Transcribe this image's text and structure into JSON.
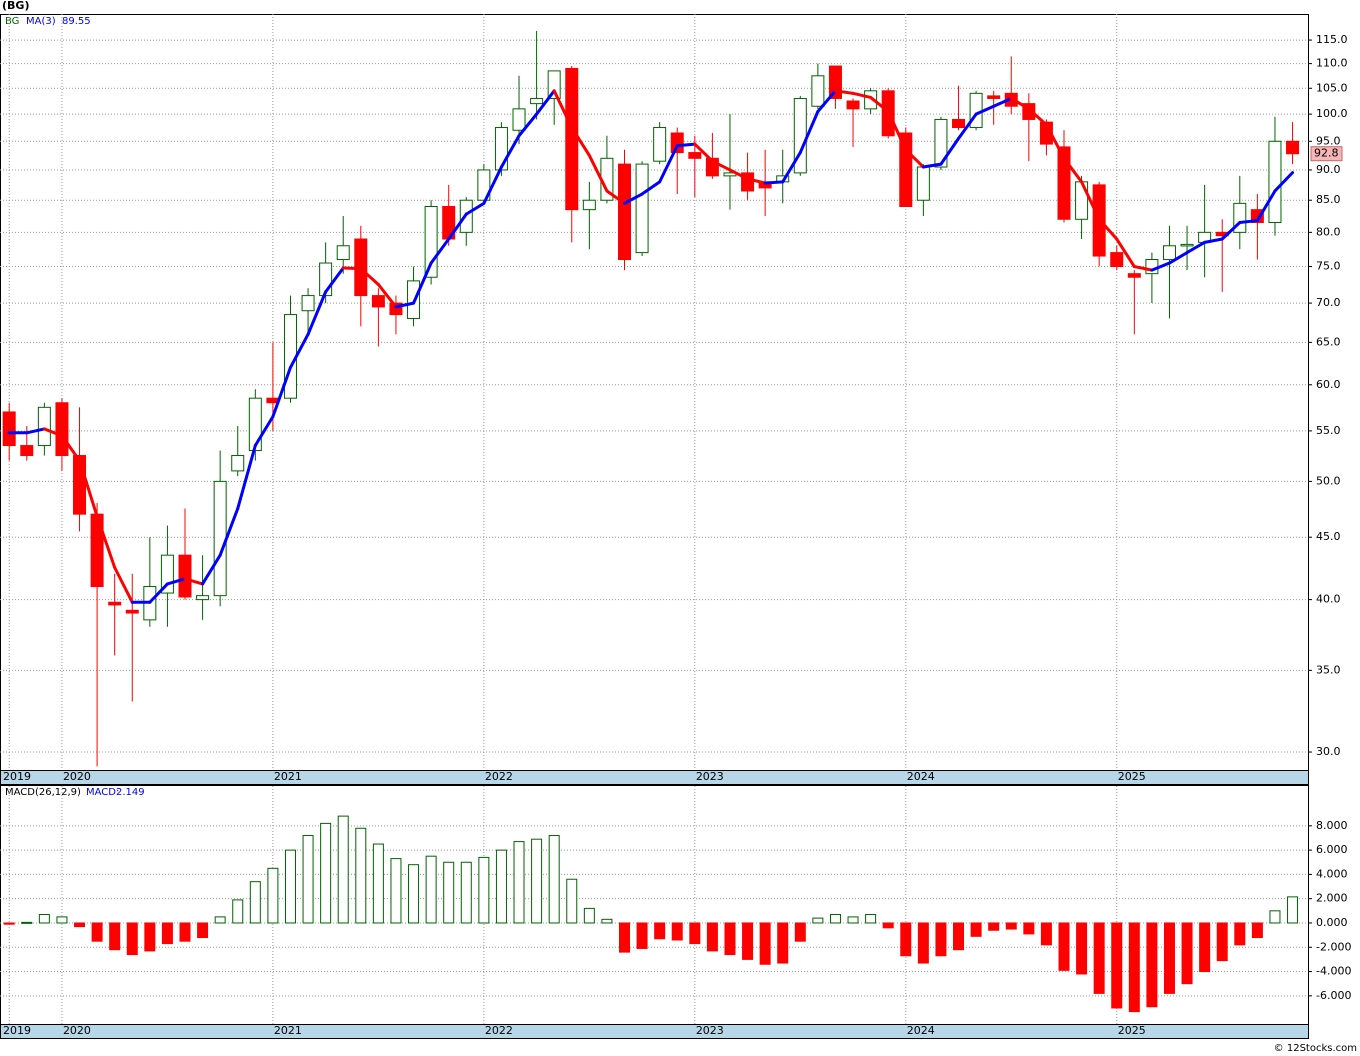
{
  "chart_data": [
    {
      "type": "candlestick",
      "title": "(BG)",
      "symbol": "BG",
      "categories": [
        "2019",
        null,
        null,
        "2020",
        null,
        null,
        null,
        null,
        null,
        null,
        null,
        null,
        null,
        null,
        null,
        "2021",
        null,
        null,
        null,
        null,
        null,
        null,
        null,
        null,
        null,
        null,
        null,
        "2022",
        null,
        null,
        null,
        null,
        null,
        null,
        null,
        null,
        null,
        null,
        null,
        "2023",
        null,
        null,
        null,
        null,
        null,
        null,
        null,
        null,
        null,
        null,
        null,
        "2024",
        null,
        null,
        null,
        null,
        null,
        null,
        null,
        null,
        null,
        null,
        null,
        "2025",
        null,
        null,
        null,
        null,
        null,
        null,
        null,
        null,
        null,
        null
      ],
      "open": [
        57,
        53.5,
        53.5,
        58,
        52.5,
        47,
        39.8,
        39.2,
        38.5,
        40.5,
        43.5,
        40,
        40.3,
        51,
        53,
        58.5,
        58.5,
        69,
        71,
        76,
        79,
        71,
        70,
        68,
        73.5,
        84,
        80,
        85,
        90,
        97,
        102,
        103,
        109,
        83.5,
        85,
        91,
        77,
        91.5,
        96.5,
        93,
        92,
        89,
        89.5,
        88,
        88,
        89.5,
        101.5,
        109.5,
        102.5,
        101,
        104.5,
        96.5,
        85,
        90.5,
        99,
        97.5,
        103.5,
        104,
        102,
        98.5,
        94,
        82,
        87.5,
        77,
        74,
        74,
        76,
        78,
        78.5,
        80,
        80,
        83.5,
        81.5,
        95
      ],
      "high": [
        58,
        55.5,
        58,
        58.5,
        57.5,
        48,
        42,
        42,
        45,
        46,
        47.5,
        43.5,
        53,
        55.5,
        59.5,
        65,
        71,
        72,
        78.5,
        82.5,
        81,
        72,
        71,
        75,
        85,
        87.5,
        85.5,
        91,
        98.5,
        107.5,
        117,
        108.5,
        109.5,
        88,
        96,
        93.5,
        91.5,
        98.5,
        97.5,
        96,
        96.5,
        100,
        93,
        93.5,
        93.5,
        103.5,
        110,
        109.5,
        103,
        105,
        105,
        97.5,
        91,
        99.5,
        105.5,
        104.5,
        104.5,
        111.5,
        104,
        99,
        97,
        89,
        88,
        78,
        74.5,
        77,
        81,
        81,
        87.5,
        82,
        89,
        86,
        99.5,
        98.5
      ],
      "low": [
        52,
        52,
        52.5,
        51,
        45.5,
        29.2,
        36,
        33,
        38,
        38,
        40,
        38.5,
        39.5,
        50.5,
        52,
        55,
        58,
        66,
        70,
        74,
        67,
        64.5,
        66,
        67,
        72.5,
        78,
        78,
        84.5,
        89,
        94.5,
        99,
        98,
        78.5,
        77.5,
        84.5,
        74.5,
        76.5,
        91,
        86,
        85.5,
        88.5,
        83.5,
        85,
        82.5,
        84.5,
        89,
        101,
        101,
        94,
        100,
        95.5,
        84,
        82.5,
        90,
        97,
        97,
        98,
        100,
        91.5,
        92.5,
        81.5,
        79,
        75,
        74.5,
        66,
        70,
        68,
        74.5,
        73.5,
        71.5,
        77.5,
        76,
        79.5,
        91
      ],
      "close": [
        53.5,
        52.5,
        57.5,
        52.5,
        47,
        41,
        39.6,
        39,
        41,
        43.5,
        40.2,
        40.3,
        50,
        52.5,
        58.5,
        58,
        68.5,
        71,
        75.5,
        78,
        71,
        69.5,
        68.5,
        73,
        84,
        79,
        85,
        90,
        97.5,
        101,
        103,
        108.5,
        83.5,
        85,
        92,
        76,
        91,
        97.5,
        93,
        92,
        89,
        89.5,
        86.5,
        87,
        89,
        103,
        107.5,
        103,
        101,
        104.5,
        96,
        84,
        90.5,
        99,
        97.5,
        104,
        103,
        101.5,
        99,
        94.5,
        82,
        88,
        76.5,
        75,
        73.5,
        76,
        78,
        78.2,
        80,
        79.5,
        84.5,
        81.5,
        95,
        92.8
      ],
      "up_color": "#006400",
      "down_color": "#ff0000",
      "last_color": "#f4b6b6",
      "ma": {
        "name": "MA(3)",
        "up_color": "#0000ff",
        "down_color": "#ff0000",
        "values": [
          54.8,
          54.8,
          55.2,
          54.5,
          52,
          46.8,
          42.5,
          39.8,
          39.8,
          41.2,
          41.6,
          41.2,
          43.5,
          47.5,
          53.5,
          56.5,
          62,
          66,
          71.5,
          74.8,
          74.7,
          72.5,
          69.5,
          70,
          75.5,
          79,
          82.8,
          84.5,
          90.5,
          96,
          100,
          104.5,
          97.5,
          92.5,
          86.5,
          84.5,
          86,
          88,
          94.2,
          94.5,
          91.5,
          90,
          88.5,
          87.8,
          88,
          93,
          100.5,
          104.5,
          104,
          103.2,
          100.5,
          93.5,
          90.5,
          91,
          95.5,
          100,
          101.5,
          103,
          101,
          98,
          92,
          88,
          82,
          79,
          75,
          74.5,
          75.5,
          77,
          78.5,
          79,
          81.5,
          81.8,
          86.5,
          89.55
        ]
      },
      "ylim": [
        29,
        120.8
      ],
      "log_scale": true,
      "grid": true,
      "yticks": [
        {
          "value": 30,
          "label": "30.0"
        },
        {
          "value": 35,
          "label": "35.0"
        },
        {
          "value": 40,
          "label": "40.0"
        },
        {
          "value": 45,
          "label": "45.0"
        },
        {
          "value": 50,
          "label": "50.0"
        },
        {
          "value": 55,
          "label": "55.0"
        },
        {
          "value": 60,
          "label": "60.0"
        },
        {
          "value": 65,
          "label": "65.0"
        },
        {
          "value": 70,
          "label": "70.0"
        },
        {
          "value": 75,
          "label": "75.0"
        },
        {
          "value": 80,
          "label": "80.0"
        },
        {
          "value": 85,
          "label": "85.0"
        },
        {
          "value": 90,
          "label": "90.0"
        },
        {
          "value": 95,
          "label": "95.0"
        },
        {
          "value": 100,
          "label": "100.0"
        },
        {
          "value": 105,
          "label": "105.0"
        },
        {
          "value": 110,
          "label": "110.0"
        },
        {
          "value": 115,
          "label": "115.0"
        }
      ]
    },
    {
      "type": "bar",
      "title": "MACD(26,12,9)",
      "value_name": "MACD:",
      "categories": [
        "2019",
        null,
        null,
        "2020",
        null,
        null,
        null,
        null,
        null,
        null,
        null,
        null,
        null,
        null,
        null,
        "2021",
        null,
        null,
        null,
        null,
        null,
        null,
        null,
        null,
        null,
        null,
        null,
        "2022",
        null,
        null,
        null,
        null,
        null,
        null,
        null,
        null,
        null,
        null,
        null,
        "2023",
        null,
        null,
        null,
        null,
        null,
        null,
        null,
        null,
        null,
        null,
        null,
        "2024",
        null,
        null,
        null,
        null,
        null,
        null,
        null,
        null,
        null,
        null,
        null,
        "2025",
        null,
        null,
        null,
        null,
        null,
        null,
        null,
        null,
        null,
        null
      ],
      "values": [
        -0.1,
        0.05,
        0.7,
        0.5,
        -0.3,
        -1.5,
        -2.2,
        -2.6,
        -2.3,
        -1.7,
        -1.5,
        -1.2,
        0.5,
        1.9,
        3.4,
        4.5,
        6.0,
        7.2,
        8.2,
        8.8,
        7.8,
        6.5,
        5.3,
        4.8,
        5.5,
        5.0,
        5.0,
        5.4,
        6.0,
        6.7,
        6.9,
        7.2,
        3.6,
        1.2,
        0.3,
        -2.4,
        -2.1,
        -1.3,
        -1.4,
        -1.7,
        -2.3,
        -2.6,
        -3.0,
        -3.4,
        -3.3,
        -1.5,
        0.4,
        0.7,
        0.5,
        0.7,
        -0.4,
        -2.7,
        -3.3,
        -2.7,
        -2.2,
        -1.1,
        -0.6,
        -0.5,
        -0.9,
        -1.8,
        -3.9,
        -4.2,
        -5.8,
        -7.0,
        -7.3,
        -6.9,
        -5.8,
        -5.0,
        -4.0,
        -3.1,
        -1.8,
        -1.2,
        1.0,
        2.149
      ],
      "up_color": "#006400",
      "down_color": "#ff0000",
      "ylim": [
        -8.32,
        11.28
      ],
      "grid": true,
      "yticks": [
        {
          "value": -6,
          "label": "-6.000"
        },
        {
          "value": -4,
          "label": "-4.000"
        },
        {
          "value": -2,
          "label": "-2.000"
        },
        {
          "value": 0,
          "label": "0.000"
        },
        {
          "value": 2,
          "label": "2.000"
        },
        {
          "value": 4,
          "label": "4.000"
        },
        {
          "value": 6,
          "label": "6.000"
        },
        {
          "value": 8,
          "label": "8.000"
        }
      ]
    }
  ],
  "copyright": "© 12Stocks.com"
}
